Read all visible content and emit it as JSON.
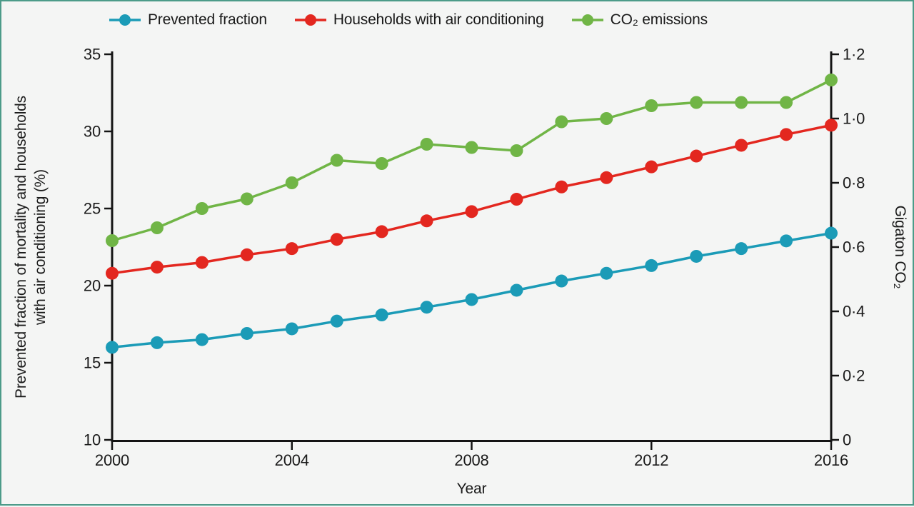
{
  "chart_data": {
    "type": "line",
    "x": [
      2000,
      2001,
      2002,
      2003,
      2004,
      2005,
      2006,
      2007,
      2008,
      2009,
      2010,
      2011,
      2012,
      2013,
      2014,
      2015,
      2016
    ],
    "series": [
      {
        "name": "Prevented fraction",
        "axis": "left",
        "color": "#1b9bb7",
        "values": [
          16.0,
          16.3,
          16.5,
          16.9,
          17.2,
          17.7,
          18.1,
          18.6,
          19.1,
          19.7,
          20.3,
          20.8,
          21.3,
          21.9,
          22.4,
          22.9,
          23.4
        ]
      },
      {
        "name": "Households with air conditioning",
        "axis": "left",
        "color": "#e3271f",
        "values": [
          20.8,
          21.2,
          21.5,
          22.0,
          22.4,
          23.0,
          23.5,
          24.2,
          24.8,
          25.6,
          26.4,
          27.0,
          27.7,
          28.4,
          29.1,
          29.8,
          30.4
        ]
      },
      {
        "name": "CO₂ emissions",
        "axis": "right",
        "color": "#70b546",
        "values": [
          0.62,
          0.66,
          0.72,
          0.75,
          0.8,
          0.87,
          0.86,
          0.92,
          0.91,
          0.9,
          0.99,
          1.0,
          1.04,
          1.05,
          1.05,
          1.05,
          1.12
        ]
      }
    ],
    "x_axis": {
      "title": "Year",
      "range": [
        2000,
        2016
      ],
      "tick_values": [
        2000,
        2004,
        2008,
        2012,
        2016
      ],
      "tick_labels": [
        "2000",
        "2004",
        "2008",
        "2012",
        "2016"
      ]
    },
    "left_axis": {
      "title_lines": [
        "Prevented fraction of mortality and households",
        "with air conditioning (%)"
      ],
      "range": [
        10,
        35
      ],
      "tick_values": [
        10,
        15,
        20,
        25,
        30,
        35
      ],
      "tick_labels": [
        "10",
        "15",
        "20",
        "25",
        "30",
        "35"
      ]
    },
    "right_axis": {
      "title": "Gigaton CO₂",
      "range": [
        0,
        1.2
      ],
      "tick_values": [
        0,
        0.2,
        0.4,
        0.6,
        0.8,
        1.0,
        1.2
      ],
      "tick_labels": [
        "0",
        "0·2",
        "0·4",
        "0·6",
        "0·8",
        "1·0",
        "1·2"
      ]
    },
    "legend_position": "top",
    "grid": false
  },
  "colors": {
    "background": "#f4f5f4",
    "border": "#4c9b89",
    "axis": "#141414",
    "text": "#1a1a1a"
  }
}
